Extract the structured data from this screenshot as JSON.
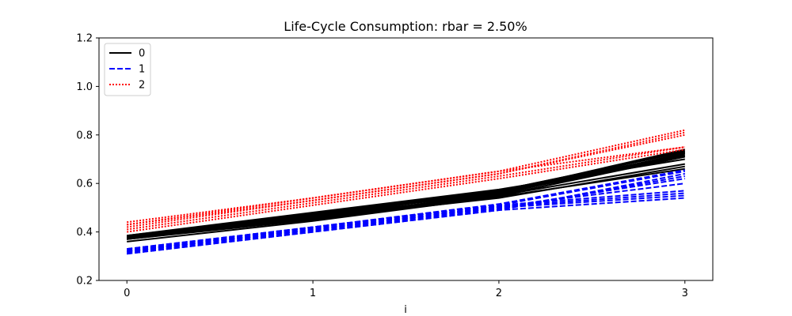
{
  "chart_data": {
    "type": "line",
    "title": "Life-Cycle Consumption: rbar = 2.50%",
    "xlabel": "i",
    "ylabel": "",
    "x": [
      0,
      1,
      2,
      3
    ],
    "xlim": [
      -0.15,
      3.15
    ],
    "ylim": [
      0.2,
      1.2
    ],
    "xticks": [
      "0",
      "1",
      "2",
      "3"
    ],
    "yticks": [
      "0.2",
      "0.4",
      "0.6",
      "0.8",
      "1.0",
      "1.2"
    ],
    "grid": false,
    "legend_position": "top-left",
    "legend": [
      {
        "label": "0",
        "color": "#000000",
        "style": "solid"
      },
      {
        "label": "1",
        "color": "#0000ff",
        "style": "dashed"
      },
      {
        "label": "2",
        "color": "#ff0000",
        "style": "dotted"
      }
    ],
    "series": [
      {
        "group": 0,
        "color": "#000000",
        "style": "solid",
        "lines": [
          [
            0.38,
            0.47,
            0.57,
            0.72
          ],
          [
            0.37,
            0.46,
            0.57,
            0.73
          ],
          [
            0.38,
            0.47,
            0.56,
            0.71
          ],
          [
            0.375,
            0.465,
            0.565,
            0.74
          ],
          [
            0.385,
            0.475,
            0.57,
            0.73
          ],
          [
            0.37,
            0.45,
            0.55,
            0.71
          ],
          [
            0.38,
            0.46,
            0.545,
            0.66
          ],
          [
            0.375,
            0.455,
            0.54,
            0.67
          ],
          [
            0.38,
            0.465,
            0.55,
            0.68
          ],
          [
            0.36,
            0.445,
            0.545,
            0.725
          ],
          [
            0.385,
            0.48,
            0.575,
            0.7
          ],
          [
            0.37,
            0.455,
            0.56,
            0.735
          ],
          [
            0.38,
            0.47,
            0.565,
            0.715
          ],
          [
            0.375,
            0.46,
            0.555,
            0.725
          ]
        ]
      },
      {
        "group": 1,
        "color": "#0000ff",
        "style": "dashed",
        "lines": [
          [
            0.32,
            0.41,
            0.5,
            0.55
          ],
          [
            0.31,
            0.4,
            0.49,
            0.54
          ],
          [
            0.33,
            0.42,
            0.51,
            0.57
          ],
          [
            0.32,
            0.41,
            0.5,
            0.62
          ],
          [
            0.31,
            0.4,
            0.49,
            0.64
          ],
          [
            0.33,
            0.42,
            0.51,
            0.65
          ],
          [
            0.32,
            0.41,
            0.505,
            0.6
          ],
          [
            0.315,
            0.405,
            0.495,
            0.63
          ],
          [
            0.325,
            0.415,
            0.505,
            0.56
          ],
          [
            0.32,
            0.42,
            0.515,
            0.655
          ]
        ]
      },
      {
        "group": 2,
        "color": "#ff0000",
        "style": "dotted",
        "lines": [
          [
            0.43,
            0.53,
            0.64,
            0.81
          ],
          [
            0.44,
            0.54,
            0.65,
            0.82
          ],
          [
            0.41,
            0.52,
            0.63,
            0.75
          ],
          [
            0.4,
            0.51,
            0.62,
            0.74
          ],
          [
            0.42,
            0.53,
            0.64,
            0.8
          ],
          [
            0.43,
            0.54,
            0.65,
            0.75
          ]
        ]
      }
    ]
  }
}
